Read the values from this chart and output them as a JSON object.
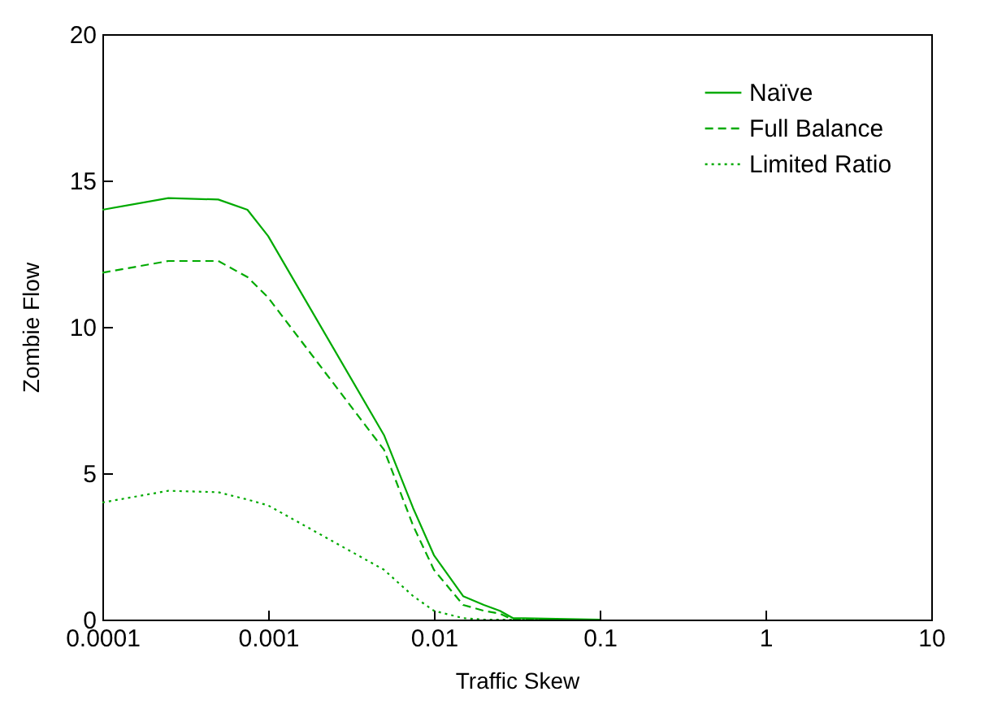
{
  "chart_data": {
    "type": "line",
    "xlabel": "Traffic Skew",
    "ylabel": "Zombie Flow",
    "log": "x",
    "x": [
      0.0001,
      0.00025,
      0.0005,
      0.00075,
      0.001,
      0.005,
      0.0075,
      0.01,
      0.015,
      0.02,
      0.025,
      0.03,
      0.1
    ],
    "series": [
      {
        "name": "Naïve",
        "color": "#00aa00",
        "line_style": "solid",
        "values": [
          14.0,
          14.4,
          14.35,
          14.0,
          13.1,
          6.3,
          3.8,
          2.2,
          0.8,
          0.5,
          0.3,
          0.05,
          0.0
        ]
      },
      {
        "name": "Full Balance",
        "color": "#00aa00",
        "line_style": "dashed",
        "values": [
          11.85,
          12.25,
          12.25,
          11.7,
          11.0,
          5.8,
          3.2,
          1.7,
          0.5,
          0.3,
          0.2,
          0.0,
          0.0
        ]
      },
      {
        "name": "Limited Ratio",
        "color": "#00aa00",
        "line_style": "dotted",
        "values": [
          4.0,
          4.4,
          4.35,
          4.1,
          3.9,
          1.7,
          0.8,
          0.3,
          0.05,
          0.0,
          0.0,
          0.0,
          0.0
        ]
      }
    ],
    "xlim": [
      0.0001,
      10
    ],
    "xticks": [
      0.0001,
      0.001,
      0.01,
      0.1,
      1,
      10
    ],
    "ylim": [
      0,
      20
    ],
    "yticks": [
      0,
      5,
      10,
      15,
      20
    ],
    "grid": false,
    "legend": "top right",
    "marker": "none"
  }
}
